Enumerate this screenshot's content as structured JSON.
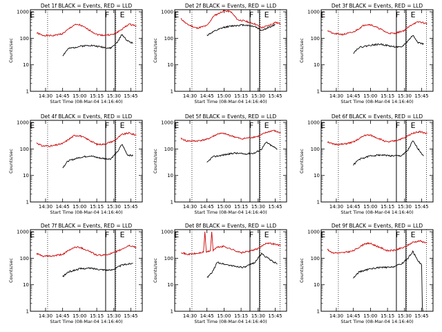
{
  "chart_data": [
    {
      "type": "line",
      "title": "Det 1f BLACK = Events, RED = LLD",
      "xlabel": "Start Time (08-Mar-04 14:16:40)",
      "ylabel": "Counts/sec",
      "xticks": [
        "14:30",
        "14:45",
        "15:00",
        "15:15",
        "15:30",
        "15:45"
      ],
      "yticks": [
        "1",
        "10",
        "100",
        "1000"
      ],
      "yscale": "log",
      "ylim": [
        1,
        1200
      ],
      "xlim": [
        "14:16:40",
        "15:55"
      ],
      "flags": [
        "E",
        "F",
        "E"
      ],
      "series": [
        {
          "color": "#cc0000",
          "t": [
            14.37,
            14.45,
            14.6,
            14.75,
            14.92,
            15.0,
            15.15,
            15.25,
            15.35,
            15.5,
            15.62,
            15.72,
            15.83
          ],
          "v": [
            160,
            130,
            125,
            150,
            320,
            320,
            200,
            140,
            130,
            140,
            220,
            340,
            300
          ]
        },
        {
          "color": "#000000",
          "t": [
            14.75,
            14.83,
            15.0,
            15.15,
            15.3,
            15.45,
            15.55,
            15.62,
            15.7,
            15.78
          ],
          "v": [
            22,
            40,
            50,
            55,
            48,
            42,
            70,
            140,
            80,
            65
          ]
        }
      ]
    },
    {
      "type": "line",
      "title": "Det 2f BLACK = Events, RED = LLD",
      "xlabel": "Start Time (08-Mar-04 14:16:40)",
      "ylabel": "Counts/sec",
      "xticks": [
        "14:30",
        "14:45",
        "15:00",
        "15:15",
        "15:30",
        "15:45"
      ],
      "yticks": [
        "1",
        "10",
        "100",
        "1000"
      ],
      "yscale": "log",
      "ylim": [
        1,
        1200
      ],
      "xlim": [
        "14:16:40",
        "15:55"
      ],
      "flags": [
        "E",
        "F",
        "E"
      ],
      "series": [
        {
          "color": "#cc0000",
          "t": [
            14.37,
            14.45,
            14.6,
            14.75,
            14.85,
            15.0,
            15.1,
            15.2,
            15.3,
            15.45,
            15.55,
            15.65,
            15.75,
            15.83
          ],
          "v": [
            550,
            350,
            240,
            300,
            700,
            1100,
            1000,
            500,
            450,
            350,
            250,
            300,
            400,
            350
          ]
        },
        {
          "color": "#000000",
          "t": [
            14.75,
            14.85,
            15.0,
            15.15,
            15.3,
            15.45,
            15.55,
            15.65,
            15.75
          ],
          "v": [
            130,
            180,
            260,
            300,
            320,
            280,
            200,
            250,
            330
          ]
        }
      ]
    },
    {
      "type": "line",
      "title": "Det 3f BLACK = Events, RED = LLD",
      "xlabel": "Start Time (08-Mar-04 14:16:40)",
      "ylabel": "Counts/sec",
      "xticks": [
        "14:30",
        "14:45",
        "15:00",
        "15:15",
        "15:30",
        "15:45"
      ],
      "yticks": [
        "1",
        "10",
        "100",
        "1000"
      ],
      "yscale": "log",
      "ylim": [
        1,
        1200
      ],
      "xlim": [
        "14:16:40",
        "15:55"
      ],
      "flags": [
        "E",
        "F",
        "E"
      ],
      "series": [
        {
          "color": "#cc0000",
          "t": [
            14.37,
            14.45,
            14.6,
            14.75,
            14.92,
            15.0,
            15.15,
            15.25,
            15.35,
            15.5,
            15.62,
            15.72,
            15.83
          ],
          "v": [
            200,
            150,
            140,
            170,
            330,
            330,
            220,
            160,
            150,
            200,
            350,
            420,
            350
          ]
        },
        {
          "color": "#000000",
          "t": [
            14.75,
            14.83,
            15.0,
            15.15,
            15.3,
            15.45,
            15.55,
            15.62,
            15.7,
            15.78
          ],
          "v": [
            28,
            45,
            55,
            60,
            50,
            45,
            80,
            130,
            70,
            60
          ]
        }
      ]
    },
    {
      "type": "line",
      "title": "Det 4f BLACK = Events, RED = LLD",
      "xlabel": "Start Time (08-Mar-04 14:16:40)",
      "ylabel": "Counts/sec",
      "xticks": [
        "14:30",
        "14:45",
        "15:00",
        "15:15",
        "15:30",
        "15:45"
      ],
      "yticks": [
        "1",
        "10",
        "100",
        "1000"
      ],
      "yscale": "log",
      "ylim": [
        1,
        1200
      ],
      "xlim": [
        "14:16:40",
        "15:55"
      ],
      "flags": [
        "E",
        "F",
        "E"
      ],
      "series": [
        {
          "color": "#cc0000",
          "t": [
            14.37,
            14.45,
            14.6,
            14.75,
            14.92,
            15.0,
            15.15,
            15.25,
            15.35,
            15.5,
            15.62,
            15.72,
            15.83
          ],
          "v": [
            170,
            130,
            130,
            160,
            320,
            320,
            210,
            150,
            150,
            200,
            350,
            400,
            330
          ]
        },
        {
          "color": "#000000",
          "t": [
            14.75,
            14.83,
            15.0,
            15.15,
            15.3,
            15.45,
            15.55,
            15.62,
            15.7,
            15.78
          ],
          "v": [
            20,
            35,
            48,
            55,
            45,
            42,
            75,
            150,
            60,
            55
          ]
        }
      ]
    },
    {
      "type": "line",
      "title": "Det 5f BLACK = Events, RED = LLD",
      "xlabel": "Start Time (08-Mar-04 14:16:40)",
      "ylabel": "Counts/sec",
      "xticks": [
        "14:30",
        "14:45",
        "15:00",
        "15:15",
        "15:30",
        "15:45"
      ],
      "yticks": [
        "1",
        "10",
        "100",
        "1000"
      ],
      "yscale": "log",
      "ylim": [
        1,
        1200
      ],
      "xlim": [
        "14:16:40",
        "15:55"
      ],
      "flags": [
        "E",
        "F",
        "E"
      ],
      "series": [
        {
          "color": "#cc0000",
          "t": [
            14.37,
            14.45,
            14.6,
            14.75,
            14.92,
            15.0,
            15.15,
            15.25,
            15.35,
            15.5,
            15.62,
            15.72,
            15.83
          ],
          "v": [
            250,
            200,
            200,
            230,
            380,
            380,
            290,
            240,
            260,
            300,
            420,
            500,
            400
          ]
        },
        {
          "color": "#000000",
          "t": [
            14.75,
            14.83,
            15.0,
            15.15,
            15.3,
            15.45,
            15.55,
            15.62,
            15.7,
            15.78
          ],
          "v": [
            30,
            50,
            60,
            70,
            65,
            70,
            100,
            180,
            130,
            100
          ]
        }
      ]
    },
    {
      "type": "line",
      "title": "Det 6f BLACK = Events, RED = LLD",
      "xlabel": "Start Time (08-Mar-04 14:16:40)",
      "ylabel": "Counts/sec",
      "xticks": [
        "14:30",
        "14:45",
        "15:00",
        "15:15",
        "15:30",
        "15:45"
      ],
      "yticks": [
        "1",
        "10",
        "100",
        "1000"
      ],
      "yscale": "log",
      "ylim": [
        1,
        1200
      ],
      "xlim": [
        "14:16:40",
        "15:55"
      ],
      "flags": [
        "E",
        "F",
        "E"
      ],
      "series": [
        {
          "color": "#cc0000",
          "t": [
            14.37,
            14.45,
            14.6,
            14.75,
            14.92,
            15.0,
            15.15,
            15.25,
            15.35,
            15.5,
            15.62,
            15.72,
            15.83
          ],
          "v": [
            190,
            150,
            150,
            180,
            330,
            330,
            230,
            180,
            200,
            260,
            400,
            450,
            380
          ]
        },
        {
          "color": "#000000",
          "t": [
            14.75,
            14.83,
            15.0,
            15.15,
            15.3,
            15.45,
            15.55,
            15.62,
            15.7,
            15.78
          ],
          "v": [
            25,
            40,
            55,
            60,
            55,
            55,
            90,
            200,
            100,
            55
          ]
        }
      ]
    },
    {
      "type": "line",
      "title": "Det 7f BLACK = Events, RED = LLD",
      "xlabel": "Start Time (08-Mar-04 14:16:40)",
      "ylabel": "Counts/sec",
      "xticks": [
        "14:30",
        "14:45",
        "15:00",
        "15:15",
        "15:30",
        "15:45"
      ],
      "yticks": [
        "1",
        "10",
        "100",
        "1000"
      ],
      "yscale": "log",
      "ylim": [
        1,
        1200
      ],
      "xlim": [
        "14:16:40",
        "15:55"
      ],
      "flags": [
        "E",
        "F",
        "E"
      ],
      "series": [
        {
          "color": "#cc0000",
          "t": [
            14.37,
            14.45,
            14.6,
            14.75,
            14.92,
            15.0,
            15.15,
            15.25,
            15.35,
            15.5,
            15.62,
            15.72,
            15.83
          ],
          "v": [
            150,
            120,
            120,
            140,
            260,
            260,
            180,
            130,
            130,
            160,
            220,
            300,
            260
          ]
        },
        {
          "color": "#000000",
          "t": [
            14.75,
            14.83,
            15.0,
            15.15,
            15.3,
            15.45,
            15.55,
            15.62,
            15.7,
            15.78
          ],
          "v": [
            20,
            30,
            40,
            42,
            38,
            35,
            45,
            55,
            60,
            65
          ]
        }
      ]
    },
    {
      "type": "line",
      "title": "Det 8f BLACK = Events, RED = LLD",
      "xlabel": "Start Time (08-Mar-04 14:16:40)",
      "ylabel": "Counts/sec",
      "xticks": [
        "14:30",
        "14:45",
        "15:00",
        "15:15",
        "15:30",
        "15:45"
      ],
      "yticks": [
        "1",
        "10",
        "100",
        "1000"
      ],
      "yscale": "log",
      "ylim": [
        1,
        1200
      ],
      "xlim": [
        "14:16:40",
        "15:55"
      ],
      "flags": [
        "E",
        "F",
        "E"
      ],
      "series": [
        {
          "color": "#cc0000",
          "t": [
            14.37,
            14.45,
            14.6,
            14.7,
            14.72,
            14.74,
            14.8,
            14.82,
            14.84,
            14.9,
            15.0,
            15.15,
            15.25,
            15.35,
            15.5,
            15.62,
            15.72,
            15.83
          ],
          "v": [
            170,
            140,
            150,
            170,
            1000,
            170,
            190,
            1000,
            200,
            260,
            280,
            200,
            160,
            180,
            230,
            380,
            350,
            300
          ]
        },
        {
          "color": "#000000",
          "t": [
            14.75,
            14.83,
            14.9,
            15.0,
            15.15,
            15.3,
            15.45,
            15.55,
            15.62,
            15.7,
            15.78
          ],
          "v": [
            18,
            30,
            70,
            60,
            50,
            45,
            70,
            150,
            110,
            80,
            60
          ]
        }
      ]
    },
    {
      "type": "line",
      "title": "Det 9f BLACK = Events, RED = LLD",
      "xlabel": "Start Time (08-Mar-04 14:16:40)",
      "ylabel": "Counts/sec",
      "xticks": [
        "14:30",
        "14:45",
        "15:00",
        "15:15",
        "15:30",
        "15:45"
      ],
      "yticks": [
        "1",
        "10",
        "100",
        "1000"
      ],
      "yscale": "log",
      "ylim": [
        1,
        1200
      ],
      "xlim": [
        "14:16:40",
        "15:55"
      ],
      "flags": [
        "E",
        "F",
        "E"
      ],
      "series": [
        {
          "color": "#cc0000",
          "t": [
            14.37,
            14.45,
            14.6,
            14.75,
            14.92,
            15.0,
            15.15,
            15.25,
            15.35,
            15.5,
            15.62,
            15.72,
            15.83
          ],
          "v": [
            210,
            160,
            160,
            190,
            360,
            360,
            250,
            190,
            200,
            260,
            400,
            450,
            380
          ]
        },
        {
          "color": "#000000",
          "t": [
            14.75,
            14.83,
            15.0,
            15.15,
            15.3,
            15.45,
            15.55,
            15.62,
            15.7,
            15.75,
            15.76,
            15.77
          ],
          "v": [
            18,
            30,
            40,
            45,
            45,
            60,
            100,
            180,
            80,
            55,
            1.5,
            1
          ]
        }
      ]
    }
  ]
}
